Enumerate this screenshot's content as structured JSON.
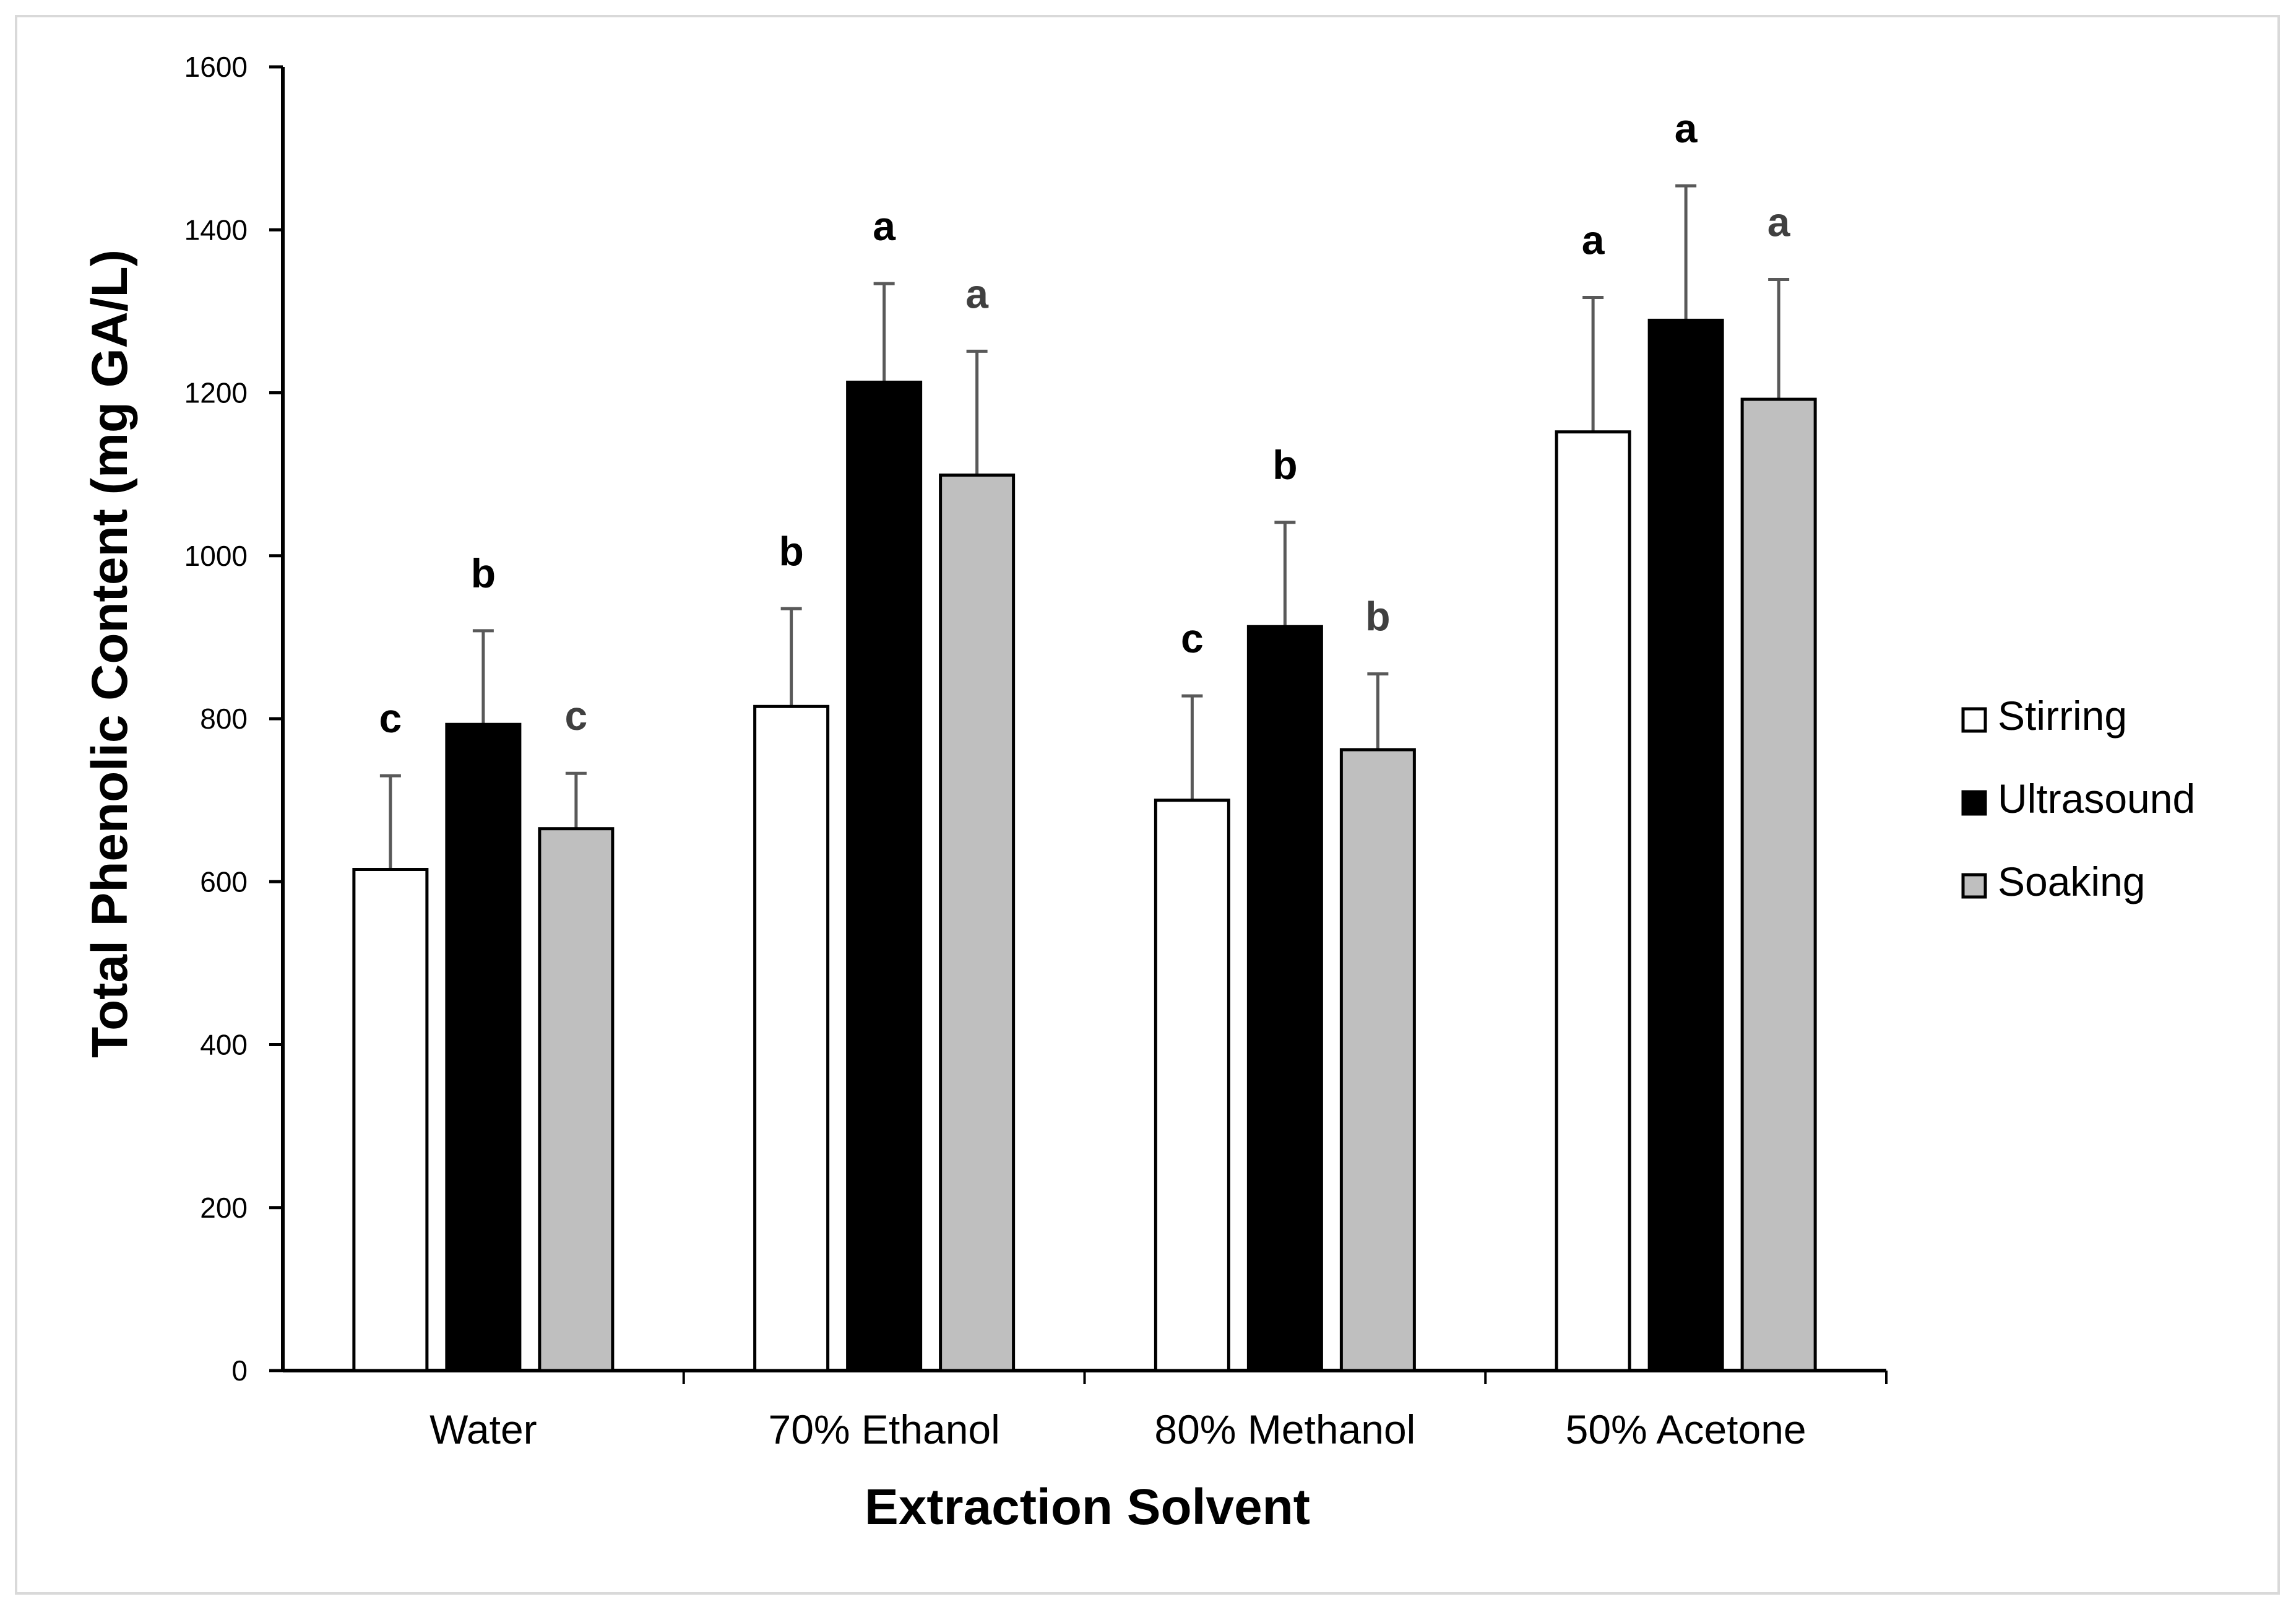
{
  "chart_data": {
    "type": "bar",
    "title": "",
    "xlabel": "Extraction Solvent",
    "ylabel": "Total Phenolic Content (mg GA/L)",
    "ylim": [
      0,
      1600
    ],
    "yticks": [
      0,
      200,
      400,
      600,
      800,
      1000,
      1200,
      1400,
      1600
    ],
    "categories": [
      "Water",
      "70% Ethanol",
      "80% Methanol",
      "50% Acetone"
    ],
    "grid": false,
    "legend_position": "right",
    "series": [
      {
        "name": "Stirring",
        "color": "#ffffff",
        "letter_color": "#000000",
        "values": [
          615,
          815,
          700,
          1152
        ],
        "errors": [
          115,
          120,
          128,
          165
        ],
        "letters": [
          "c",
          "b",
          "c",
          "a"
        ]
      },
      {
        "name": "Ultrasound",
        "color": "#000000",
        "letter_color": "#000000",
        "values": [
          793,
          1213,
          913,
          1289
        ],
        "errors": [
          115,
          121,
          128,
          165
        ],
        "letters": [
          "b",
          "a",
          "b",
          "a"
        ]
      },
      {
        "name": "Soaking",
        "color": "#bfbfbf",
        "letter_color": "#404040",
        "values": [
          665,
          1099,
          762,
          1192
        ],
        "errors": [
          68,
          152,
          93,
          147
        ],
        "letters": [
          "c",
          "a",
          "b",
          "a"
        ]
      }
    ]
  }
}
